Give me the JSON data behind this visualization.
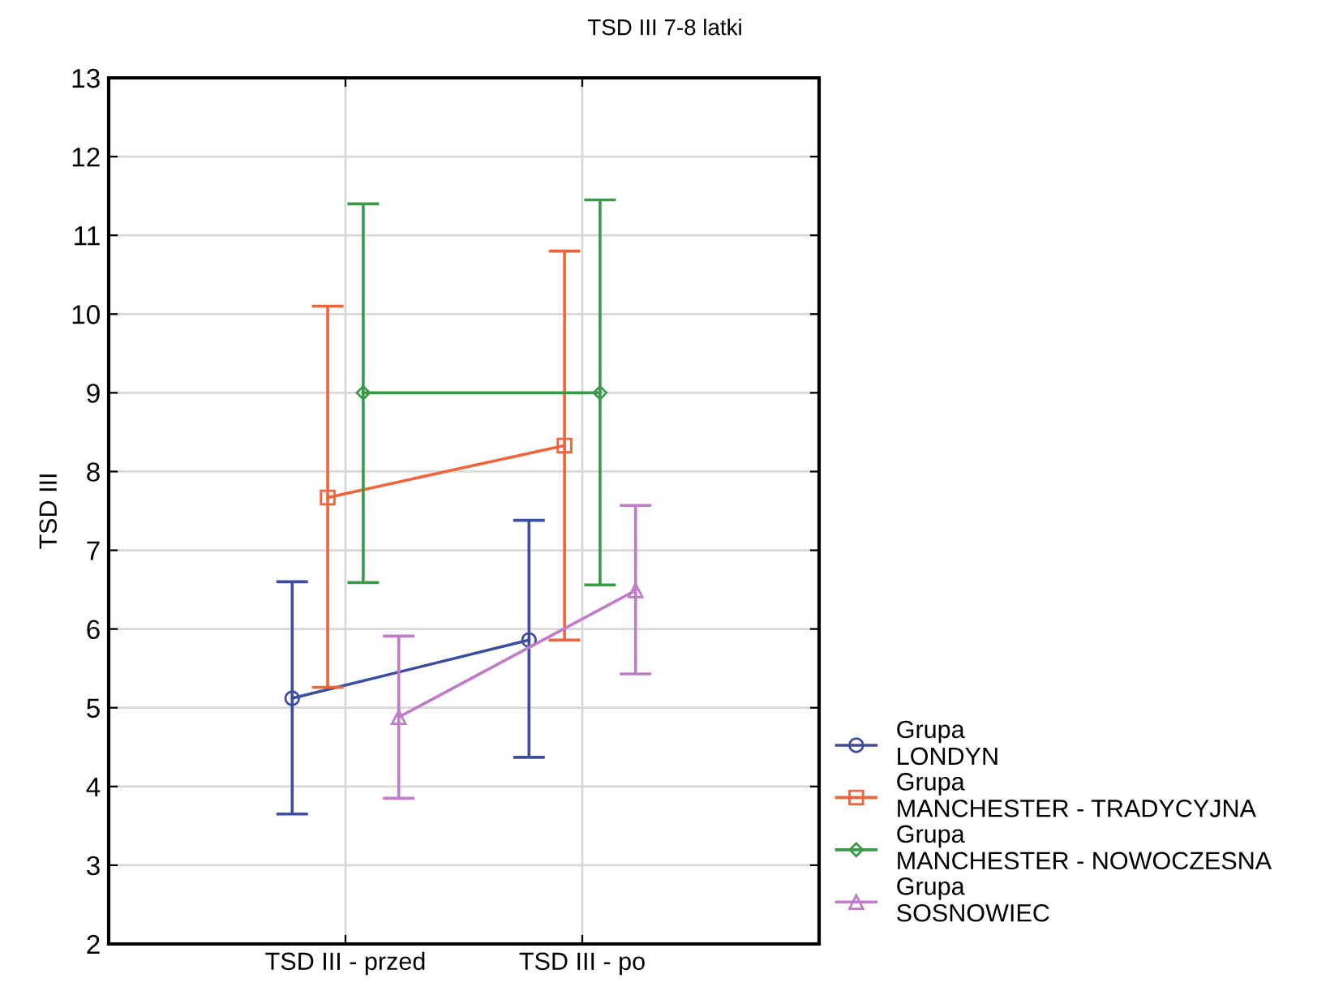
{
  "chart_data": {
    "type": "line",
    "title": "TSD III 7-8 latki",
    "ylabel": "TSD III",
    "categories": [
      "TSD III - przed",
      "TSD III - po"
    ],
    "ylim": [
      2,
      13
    ],
    "yticks": [
      2,
      3,
      4,
      5,
      6,
      7,
      8,
      9,
      10,
      11,
      12,
      13
    ],
    "grid": true,
    "legend": "bottom right",
    "series": [
      {
        "name": "Grupa\nLONDYN",
        "color": "#3b4ea0",
        "marker": "circle",
        "values": [
          5.12,
          5.86
        ],
        "errors": [
          [
            3.65,
            6.6
          ],
          [
            4.37,
            7.38
          ]
        ]
      },
      {
        "name": "Grupa\nMANCHESTER - TRADYCYJNA",
        "color": "#f0643c",
        "marker": "square",
        "values": [
          7.67,
          8.33
        ],
        "errors": [
          [
            5.26,
            10.1
          ],
          [
            5.86,
            10.8
          ]
        ]
      },
      {
        "name": "Grupa\nMANCHESTER - NOWOCZESNA",
        "color": "#3a9a4a",
        "marker": "diamond",
        "values": [
          9.0,
          9.0
        ],
        "errors": [
          [
            6.59,
            11.4
          ],
          [
            6.56,
            11.45
          ]
        ]
      },
      {
        "name": "Grupa\nSOSNOWIEC",
        "color": "#c07cc8",
        "marker": "triangle",
        "values": [
          4.88,
          6.49
        ],
        "errors": [
          [
            3.85,
            5.91
          ],
          [
            5.43,
            7.57
          ]
        ]
      }
    ]
  }
}
